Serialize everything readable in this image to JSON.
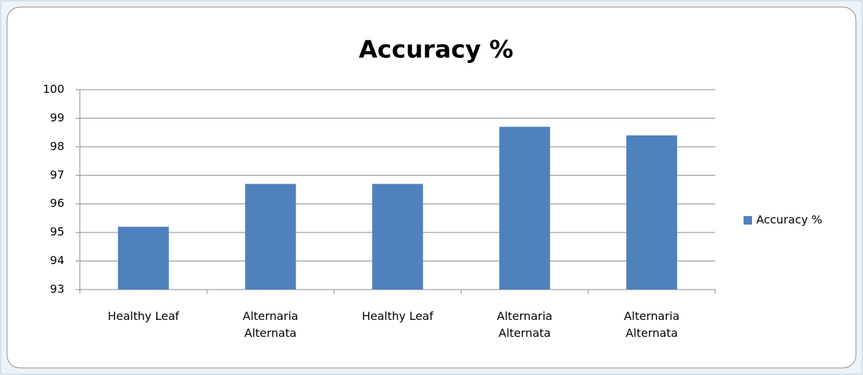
{
  "chart_data": {
    "type": "bar",
    "title": "Accuracy %",
    "categories": [
      "Healthy Leaf",
      "Alternaria Alternata",
      "Healthy Leaf",
      "Alternaria Alternata",
      "Alternaria Alternata"
    ],
    "series": [
      {
        "name": "Accuracy %",
        "color": "#4f81bd",
        "values": [
          95.2,
          96.7,
          96.7,
          98.7,
          98.4
        ]
      }
    ],
    "ylim": [
      93,
      100
    ],
    "yticks": [
      93,
      94,
      95,
      96,
      97,
      98,
      99,
      100
    ],
    "grid": true,
    "legend": "right"
  }
}
